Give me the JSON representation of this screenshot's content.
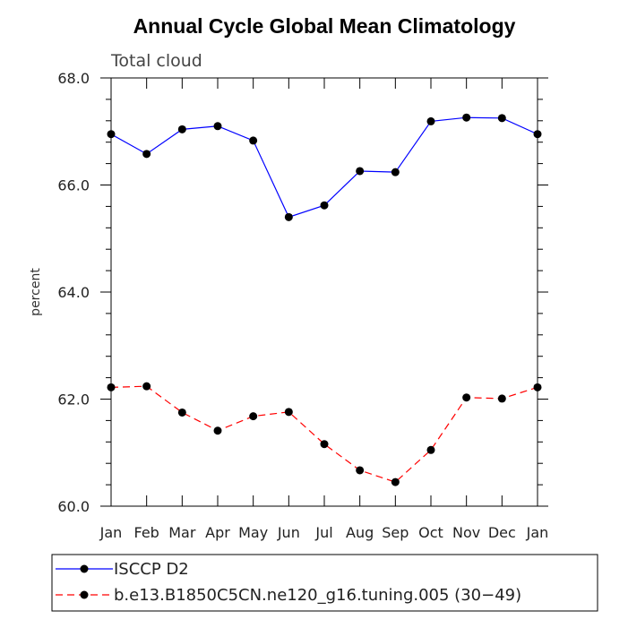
{
  "chart_data": {
    "type": "line",
    "title": "Annual Cycle Global Mean Climatology",
    "subtitle": "Total cloud",
    "xlabel": "",
    "ylabel": "percent",
    "categories": [
      "Jan",
      "Feb",
      "Mar",
      "Apr",
      "May",
      "Jun",
      "Jul",
      "Aug",
      "Sep",
      "Oct",
      "Nov",
      "Dec",
      "Jan"
    ],
    "ylim": [
      60.0,
      68.0
    ],
    "yticks": [
      "60.0",
      "62.0",
      "64.0",
      "66.0",
      "68.0"
    ],
    "series": [
      {
        "name": "ISCCP D2",
        "color": "#0000ff",
        "dash": "solid",
        "values": [
          66.95,
          66.58,
          67.04,
          67.1,
          66.83,
          65.4,
          65.62,
          66.26,
          66.24,
          67.19,
          67.26,
          67.25,
          66.95
        ]
      },
      {
        "name": "b.e13.B1850C5CN.ne120_g16.tuning.005 (30−49)",
        "color": "#ff0000",
        "dash": "dashed",
        "values": [
          62.22,
          62.24,
          61.75,
          61.41,
          61.68,
          61.76,
          61.16,
          60.67,
          60.45,
          61.05,
          62.03,
          62.01,
          62.22
        ]
      }
    ]
  }
}
